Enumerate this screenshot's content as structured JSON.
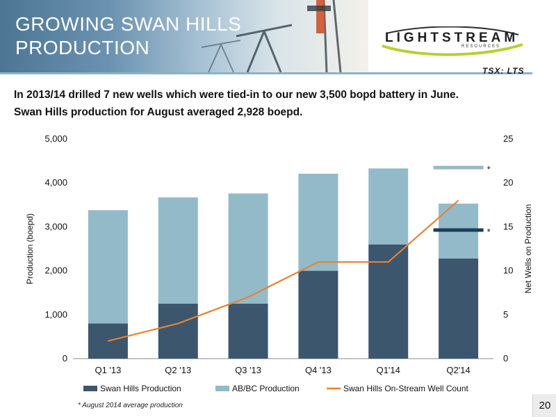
{
  "slide": {
    "title_line1": "GROWING SWAN HILLS",
    "title_line2": "PRODUCTION",
    "logo_name": "LIGHTSTREAM",
    "logo_sub": "RESOURCES",
    "ticker": "TSX: LTS",
    "headline_line1": "In 2013/14 drilled 7 new wells which were tied-in to our new 3,500 bopd battery in June.",
    "headline_line2": "Swan Hills production for August averaged 2,928 boepd.",
    "footnote": "* August 2014 average production",
    "page_number": "20"
  },
  "colors": {
    "swan_hills": "#3c566d",
    "ab_bc": "#93bac8",
    "well_count": "#e8822e",
    "marker_light": "#93bac8",
    "marker_dark": "#1f3c5a"
  },
  "chart_data": {
    "type": "bar",
    "stacked": true,
    "categories": [
      "Q1 '13",
      "Q2 '13",
      "Q3 '13",
      "Q4 '13",
      "Q1'14",
      "Q2'14"
    ],
    "series": [
      {
        "name": "Swan Hills Production",
        "axis": "left",
        "values": [
          800,
          1250,
          1250,
          2000,
          2600,
          2280
        ]
      },
      {
        "name": "AB/BC Production",
        "axis": "left",
        "values": [
          2580,
          2420,
          2510,
          2210,
          1730,
          1250
        ]
      },
      {
        "name": "Swan Hills On-Stream Well Count",
        "type": "line",
        "axis": "right",
        "values": [
          2,
          4,
          7,
          11,
          11,
          18
        ]
      }
    ],
    "markers": [
      {
        "series": "AB/BC Production",
        "value": 4350,
        "label": "*"
      },
      {
        "series": "Swan Hills Production",
        "value": 2928,
        "label": "*"
      }
    ],
    "ylabel": "Production (boepd)",
    "y2label": "Net Wells on Production",
    "ylim": [
      0,
      5000
    ],
    "y2lim": [
      0,
      25
    ],
    "yticks": [
      0,
      1000,
      2000,
      3000,
      4000,
      5000
    ],
    "yticklabels": [
      "0",
      "1,000",
      "2,000",
      "3,000",
      "4,000",
      "5,000"
    ],
    "y2ticks": [
      0,
      5,
      10,
      15,
      20,
      25
    ],
    "y2ticklabels": [
      "0",
      "5",
      "10",
      "15",
      "20",
      "25"
    ],
    "grid": false,
    "legend": "bottom"
  }
}
